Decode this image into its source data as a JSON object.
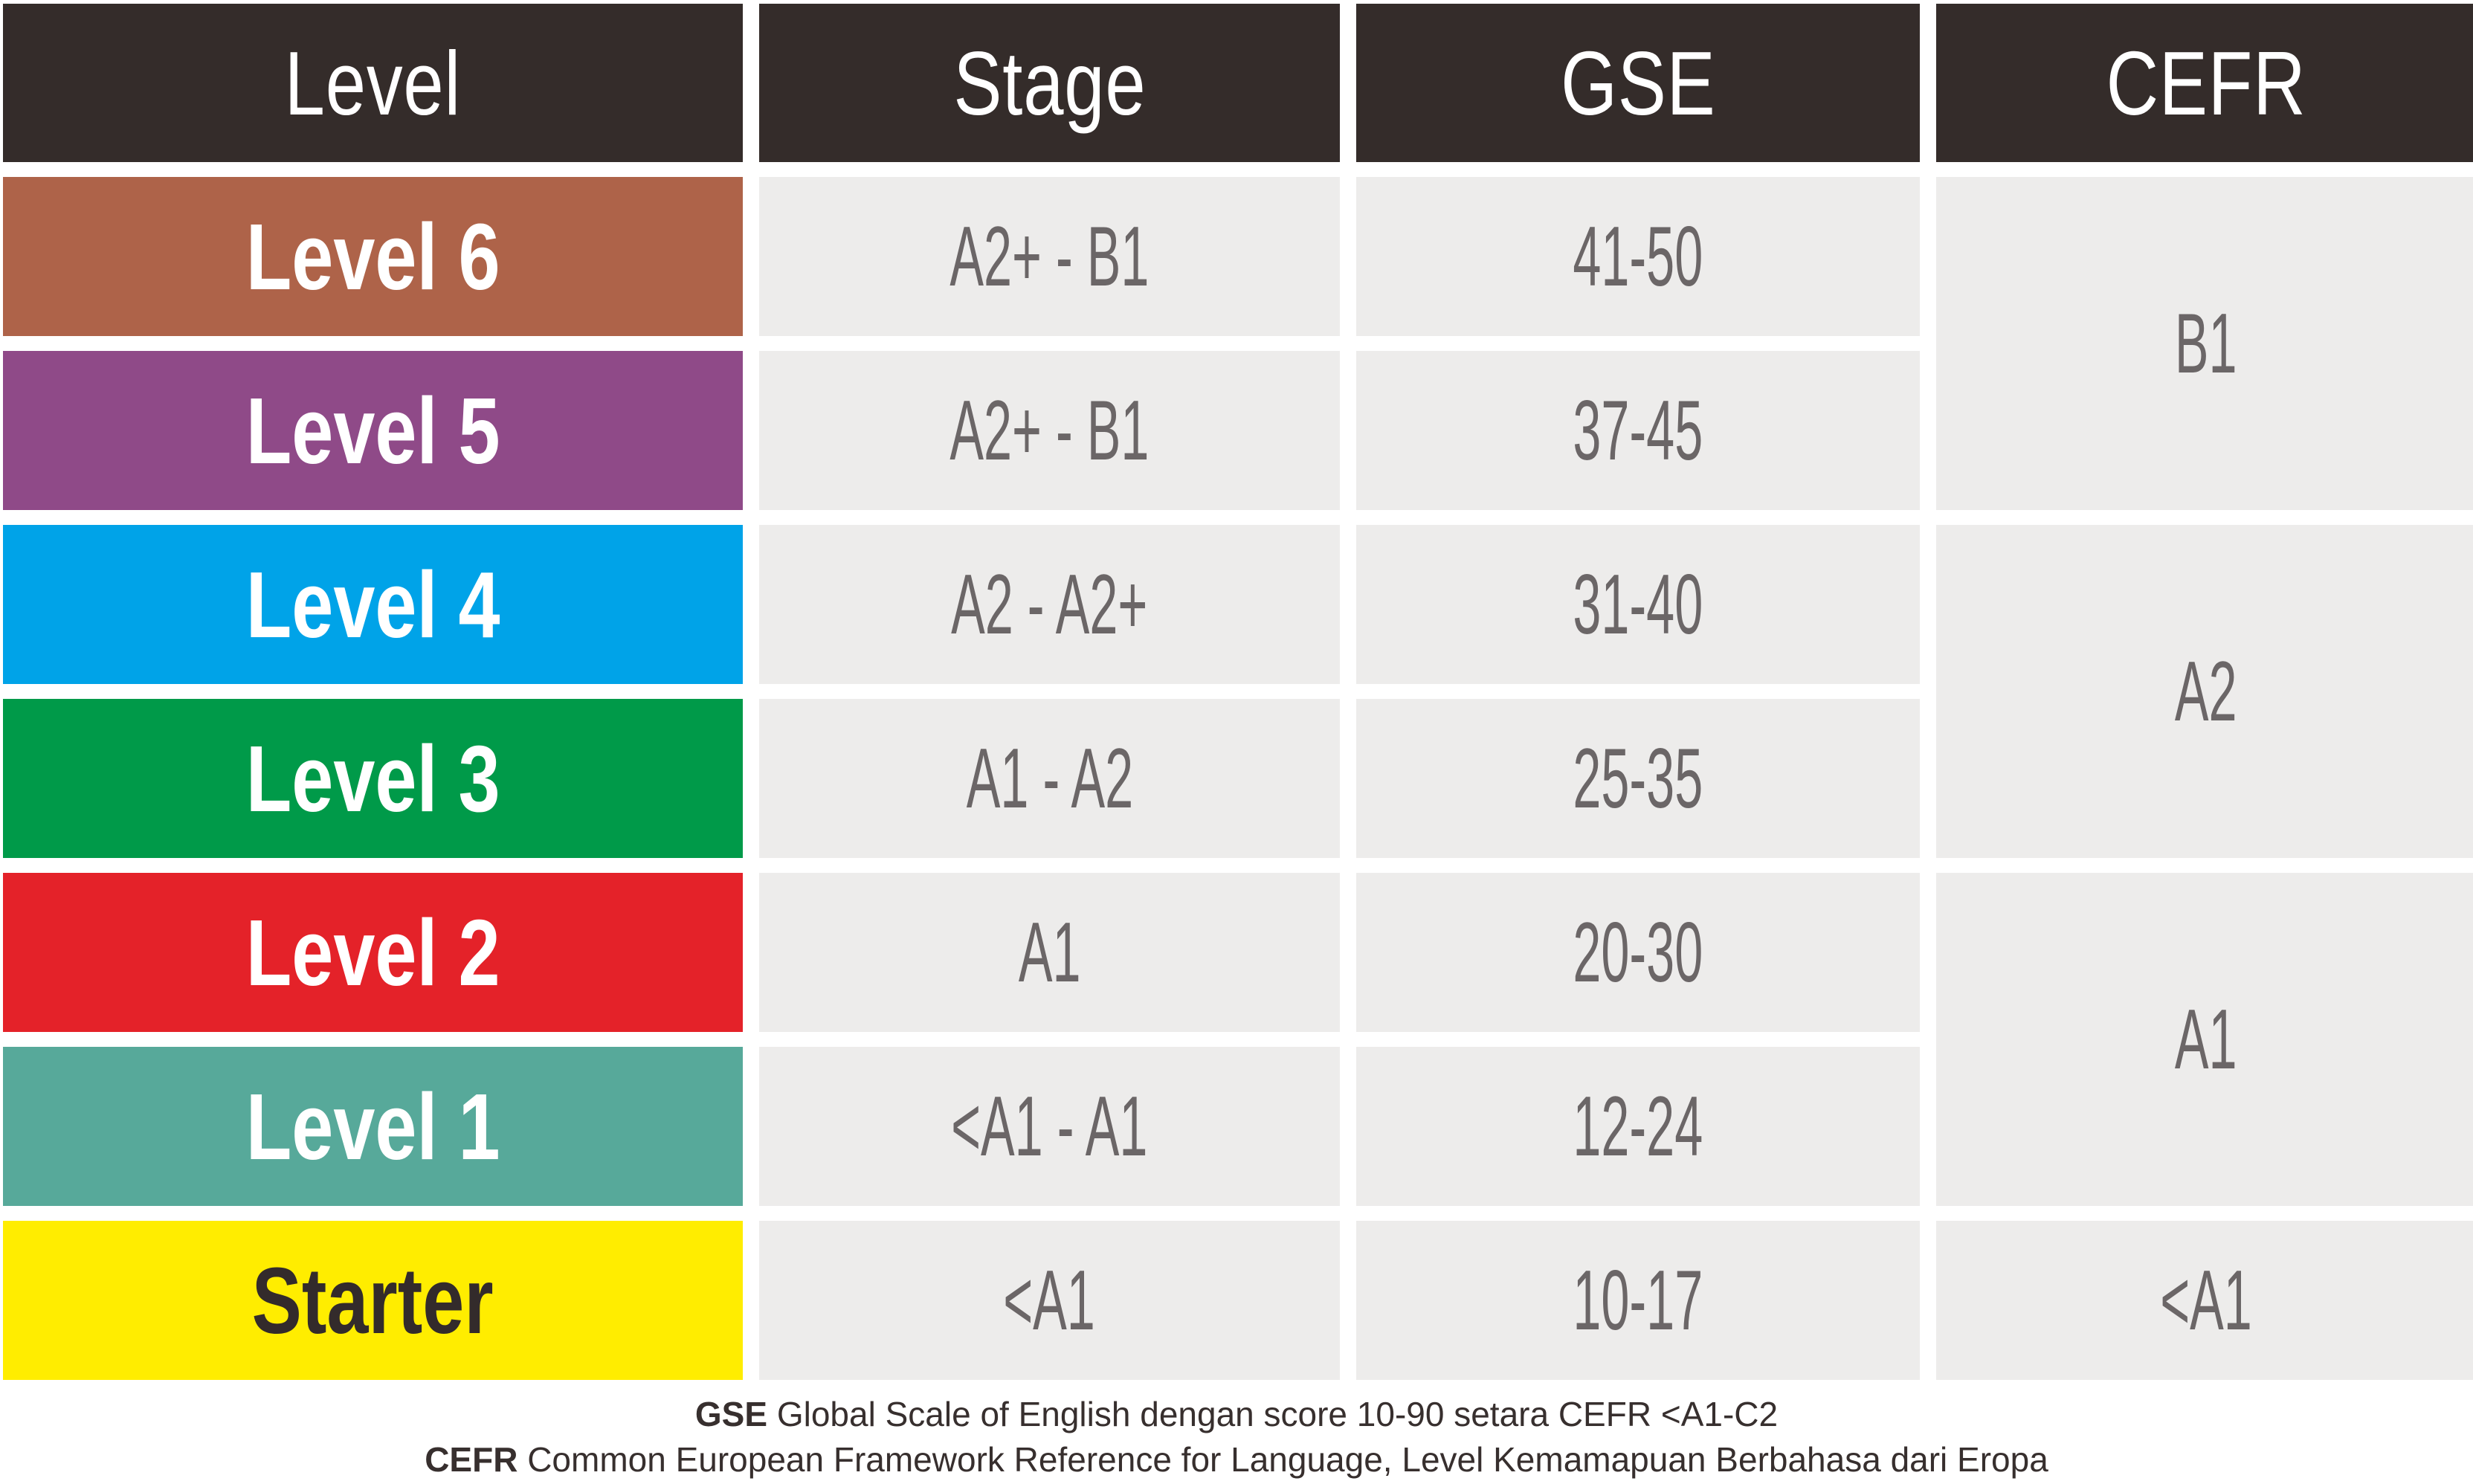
{
  "chart_data": {
    "type": "table",
    "title": "English level equivalence table (Level / Stage / GSE / CEFR)",
    "columns": [
      "Level",
      "Stage",
      "GSE",
      "CEFR"
    ],
    "rows": [
      [
        "Level 6",
        "A2+ - B1",
        "41-50",
        "B1"
      ],
      [
        "Level 5",
        "A2+ - B1",
        "37-45",
        "B1"
      ],
      [
        "Level 4",
        "A2 - A2+",
        "31-40",
        "A2"
      ],
      [
        "Level 3",
        "A1 - A2",
        "25-35",
        "A2"
      ],
      [
        "Level 2",
        "A1",
        "20-30",
        "A1"
      ],
      [
        "Level 1",
        "<A1 - A1",
        "12-24",
        "A1"
      ],
      [
        "Starter",
        "<A1",
        "10-17",
        "<A1"
      ]
    ],
    "cefr_merged_cells": [
      {
        "label": "B1",
        "span_rows": 2
      },
      {
        "label": "A2",
        "span_rows": 2
      },
      {
        "label": "A1",
        "span_rows": 2
      },
      {
        "label": "<A1",
        "span_rows": 1
      }
    ]
  },
  "table": {
    "headers": [
      {
        "label": "Level"
      },
      {
        "label": "Stage"
      },
      {
        "label": "GSE"
      },
      {
        "label": "CEFR"
      }
    ],
    "header_bg": "#342C2A",
    "header_text_color": "#FFFFFF",
    "cell_bg": "#EDECEB",
    "cell_text_color": "#6B6667",
    "rows": [
      {
        "level": "Level 6",
        "stage": "A2+ - B1",
        "gse": "41-50",
        "color": "#AE6349",
        "label_color": "#FFFFFF"
      },
      {
        "level": "Level 5",
        "stage": "A2+ - B1",
        "gse": "37-45",
        "color": "#8F4A88",
        "label_color": "#FFFFFF"
      },
      {
        "level": "Level 4",
        "stage": "A2 - A2+",
        "gse": "31-40",
        "color": "#00A3E8",
        "label_color": "#FFFFFF"
      },
      {
        "level": "Level 3",
        "stage": "A1 - A2",
        "gse": "25-35",
        "color": "#009A49",
        "label_color": "#FFFFFF"
      },
      {
        "level": "Level 2",
        "stage": "A1",
        "gse": "20-30",
        "color": "#E42229",
        "label_color": "#FFFFFF"
      },
      {
        "level": "Level 1",
        "stage": "<A1 - A1",
        "gse": "12-24",
        "color": "#57A99A",
        "label_color": "#FFFFFF"
      },
      {
        "level": "Starter",
        "stage": "<A1",
        "gse": "10-17",
        "color": "#FFED00",
        "label_color": "#332B2B"
      }
    ],
    "cefr_groups": [
      {
        "label": "B1"
      },
      {
        "label": "A2"
      },
      {
        "label": "A1"
      },
      {
        "label": "<A1"
      }
    ]
  },
  "footer": {
    "line1_term": "GSE",
    "line1_text": "Global Scale of English dengan score 10-90 setara CEFR <A1-C2",
    "line2_term": "CEFR",
    "line2_text": "Common European Framework Reference for Language, Level Kemamapuan Berbahasa dari Eropa"
  }
}
